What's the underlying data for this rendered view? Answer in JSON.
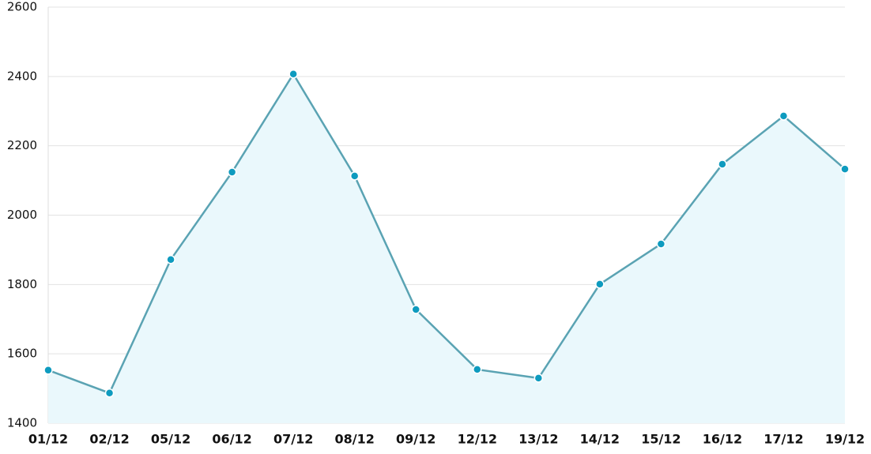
{
  "chart_data": {
    "type": "area",
    "categories": [
      "01/12",
      "02/12",
      "05/12",
      "06/12",
      "07/12",
      "08/12",
      "09/12",
      "12/12",
      "13/12",
      "14/12",
      "15/12",
      "16/12",
      "17/12",
      "19/12"
    ],
    "values": [
      1553,
      1487,
      1872,
      2124,
      2407,
      2113,
      1728,
      1555,
      1530,
      1801,
      1917,
      2147,
      2286,
      2133
    ],
    "color": "#5aa3b3",
    "marker_color": "#0e9bbf",
    "fill_color": "#eaf8fc",
    "ylim": [
      1400,
      2600
    ],
    "yticks": [
      1400,
      1600,
      1800,
      2000,
      2200,
      2400,
      2600
    ],
    "grid": true
  }
}
